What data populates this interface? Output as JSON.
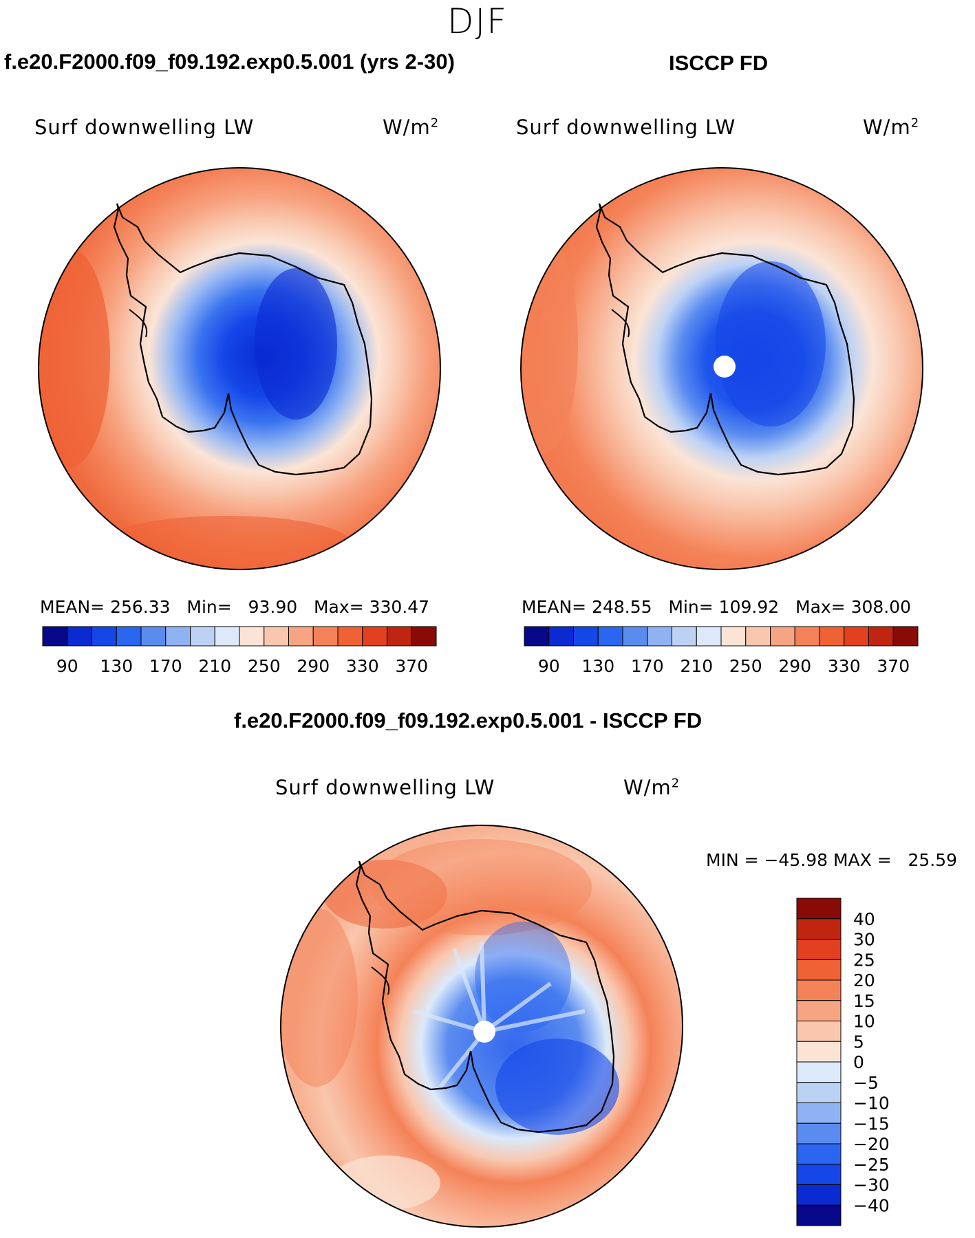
{
  "season": "DJF",
  "panels": [
    {
      "title": "f.e20.F2000.f09_f09.192.exp0.5.001 (yrs 2-30)",
      "variable": "Surf downwelling LW",
      "units": "W/m",
      "units_sup": "2",
      "stats": {
        "mean_label": "MEAN=",
        "mean": "256.33",
        "min_label": "Min=",
        "min": "93.90",
        "max_label": "Max=",
        "max": "330.47"
      }
    },
    {
      "title": "ISCCP FD",
      "variable": "Surf downwelling LW",
      "units": "W/m",
      "units_sup": "2",
      "stats": {
        "mean_label": "MEAN=",
        "mean": "248.55",
        "min_label": "Min=",
        "min": "109.92",
        "max_label": "Max=",
        "max": "308.00"
      }
    },
    {
      "title": "f.e20.F2000.f09_f09.192.exp0.5.001 - ISCCP FD",
      "variable": "Surf downwelling LW",
      "units": "W/m",
      "units_sup": "2",
      "stats_text": "MIN = −45.98 MAX =   25.59"
    }
  ],
  "abs_colorbar": {
    "ticks": [
      "90",
      "130",
      "170",
      "210",
      "250",
      "290",
      "330",
      "370"
    ],
    "colors": [
      "#08088a",
      "#0a2ad2",
      "#1446e8",
      "#2a66f0",
      "#5a8cf0",
      "#8fb2f2",
      "#bcd2f5",
      "#dbe9fa",
      "#fbe4d6",
      "#f9c7ae",
      "#f7a482",
      "#f48258",
      "#ef6236",
      "#e2401e",
      "#c02510",
      "#8a0a05"
    ]
  },
  "diff_colorbar": {
    "labels": [
      "40",
      "30",
      "25",
      "20",
      "15",
      "10",
      "5",
      "0",
      "−5",
      "−10",
      "−15",
      "−20",
      "−25",
      "−30",
      "−40"
    ],
    "colors": [
      "#8a0a05",
      "#c02510",
      "#e2401e",
      "#ef6236",
      "#f48258",
      "#f7a482",
      "#f9c7ae",
      "#fbe4d6",
      "#dbe9fa",
      "#bcd2f5",
      "#8fb2f2",
      "#5a8cf0",
      "#2a66f0",
      "#1446e8",
      "#0a2ad2",
      "#08088a"
    ]
  }
}
